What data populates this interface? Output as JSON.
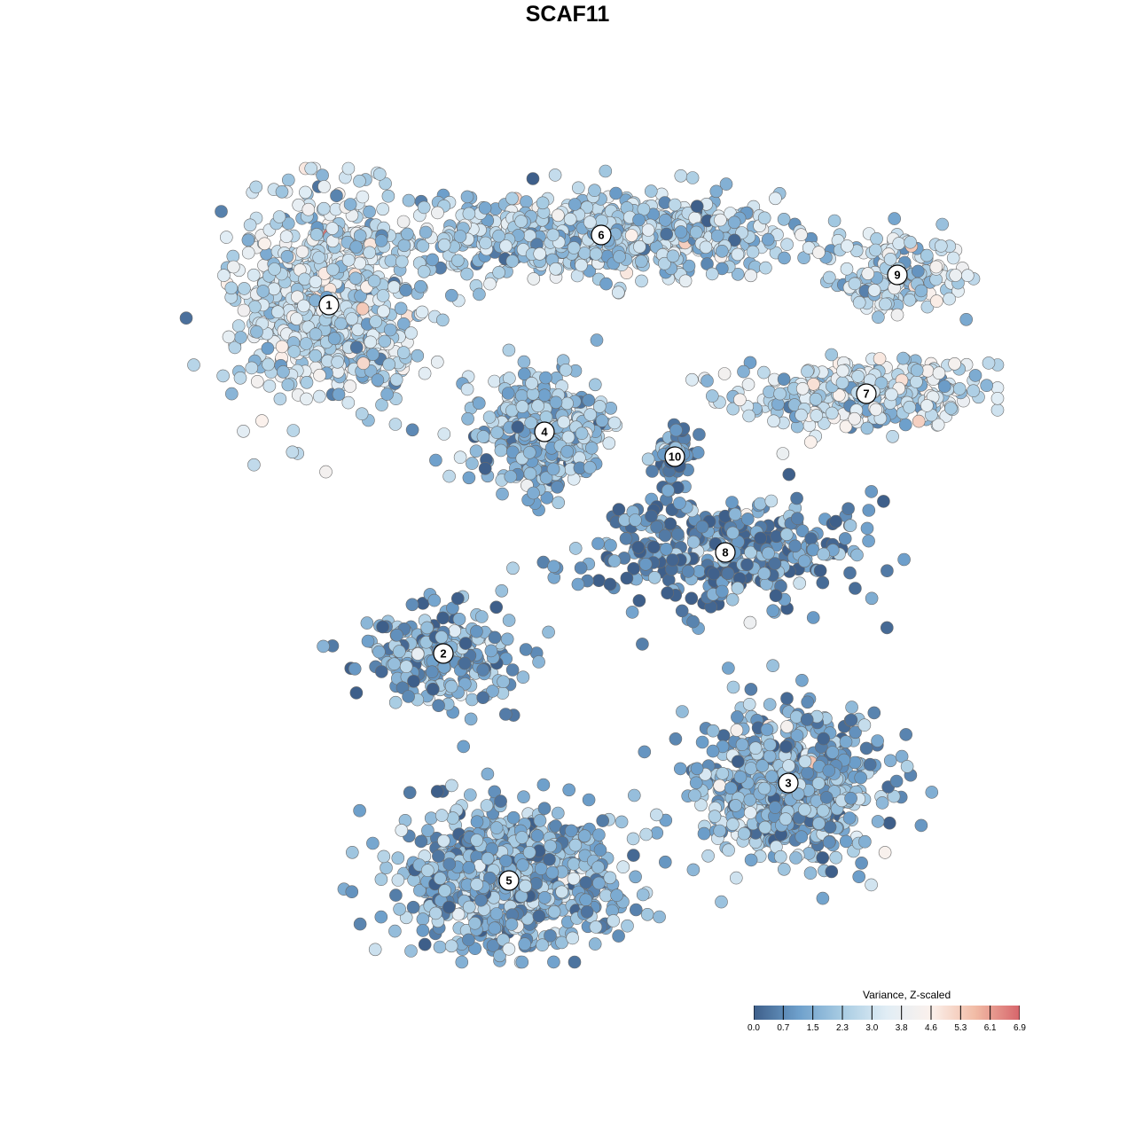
{
  "title": "SCAF11",
  "chart_data": {
    "type": "scatter",
    "title": "SCAF11",
    "xlabel": "",
    "ylabel": "",
    "grid": false,
    "color_variable": "Variance, Z-scaled",
    "color_scale": {
      "min": 0.0,
      "max": 6.9,
      "colors": [
        "#3e5f8a",
        "#6d9fcb",
        "#a8cce3",
        "#e1edf5",
        "#fbf1ec",
        "#f1bba5",
        "#d7656b"
      ],
      "ticks": [
        "0.0",
        "0.7",
        "1.5",
        "2.3",
        "3.0",
        "3.8",
        "4.6",
        "5.3",
        "6.1",
        "6.9"
      ]
    },
    "legend": {
      "title": "Variance, Z-scaled",
      "position": "bottom-right"
    },
    "clusters": [
      {
        "label": "1",
        "center": [
          371,
          344
        ],
        "spread": [
          95,
          110
        ],
        "n": 750,
        "mean_value": 2.8
      },
      {
        "label": "2",
        "center": [
          500,
          737
        ],
        "spread": [
          85,
          50
        ],
        "n": 240,
        "mean_value": 1.3
      },
      {
        "label": "3",
        "center": [
          889,
          883
        ],
        "spread": [
          95,
          75
        ],
        "n": 650,
        "mean_value": 1.6
      },
      {
        "label": "4",
        "center": [
          614,
          487
        ],
        "spread": [
          65,
          55
        ],
        "n": 420,
        "mean_value": 1.9
      },
      {
        "label": "5",
        "center": [
          574,
          993
        ],
        "spread": [
          110,
          70
        ],
        "n": 750,
        "mean_value": 1.5
      },
      {
        "label": "6",
        "center": [
          678,
          265
        ],
        "spread": [
          185,
          40
        ],
        "n": 700,
        "mean_value": 2.3
      },
      {
        "label": "7",
        "center": [
          977,
          444
        ],
        "spread": [
          125,
          35
        ],
        "n": 330,
        "mean_value": 2.8
      },
      {
        "label": "8",
        "center": [
          818,
          623
        ],
        "spread": [
          140,
          55
        ],
        "n": 380,
        "mean_value": 0.8
      },
      {
        "label": "9",
        "center": [
          1012,
          310
        ],
        "spread": [
          70,
          40
        ],
        "n": 170,
        "mean_value": 2.9
      },
      {
        "label": "10",
        "center": [
          761,
          515
        ],
        "spread": [
          25,
          35
        ],
        "n": 60,
        "mean_value": 0.9
      }
    ]
  }
}
